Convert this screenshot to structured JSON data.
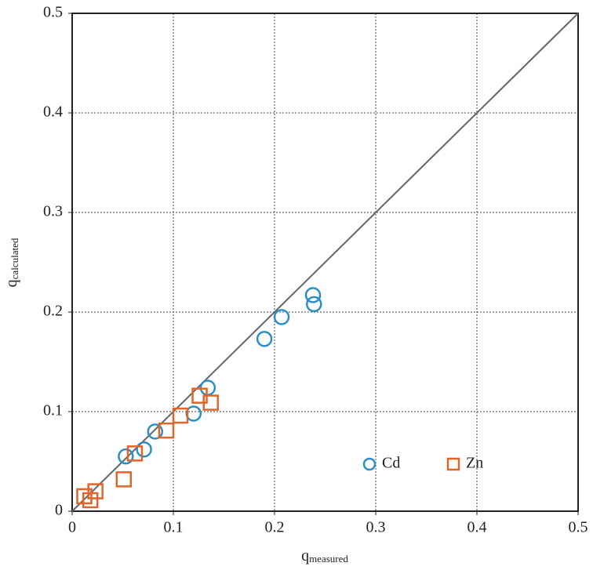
{
  "chart_data": {
    "type": "scatter",
    "xlabel": {
      "main": "q",
      "sub": "measured"
    },
    "ylabel": {
      "main": "q",
      "sub": "calculated"
    },
    "xlim": [
      0,
      0.5
    ],
    "ylim": [
      0,
      0.5
    ],
    "xticks": [
      0,
      0.1,
      0.2,
      0.3,
      0.4,
      0.5
    ],
    "yticks": [
      0,
      0.1,
      0.2,
      0.3,
      0.4,
      0.5
    ],
    "grid": true,
    "legend": "lower right",
    "reference_line": {
      "x": [
        0,
        0.5
      ],
      "y": [
        0,
        0.5
      ],
      "color": "#666666"
    },
    "series": [
      {
        "name": "Cd",
        "color": "#2b8fc2",
        "marker": "circle",
        "x": [
          0.053,
          0.071,
          0.082,
          0.12,
          0.134,
          0.19,
          0.207,
          0.238,
          0.239
        ],
        "values": [
          0.055,
          0.062,
          0.08,
          0.098,
          0.124,
          0.173,
          0.195,
          0.217,
          0.208
        ]
      },
      {
        "name": "Zn",
        "color": "#e0652a",
        "marker": "square",
        "x": [
          0.012,
          0.018,
          0.023,
          0.051,
          0.062,
          0.093,
          0.107,
          0.126,
          0.137
        ],
        "values": [
          0.015,
          0.011,
          0.02,
          0.032,
          0.058,
          0.081,
          0.096,
          0.116,
          0.109
        ]
      }
    ]
  }
}
